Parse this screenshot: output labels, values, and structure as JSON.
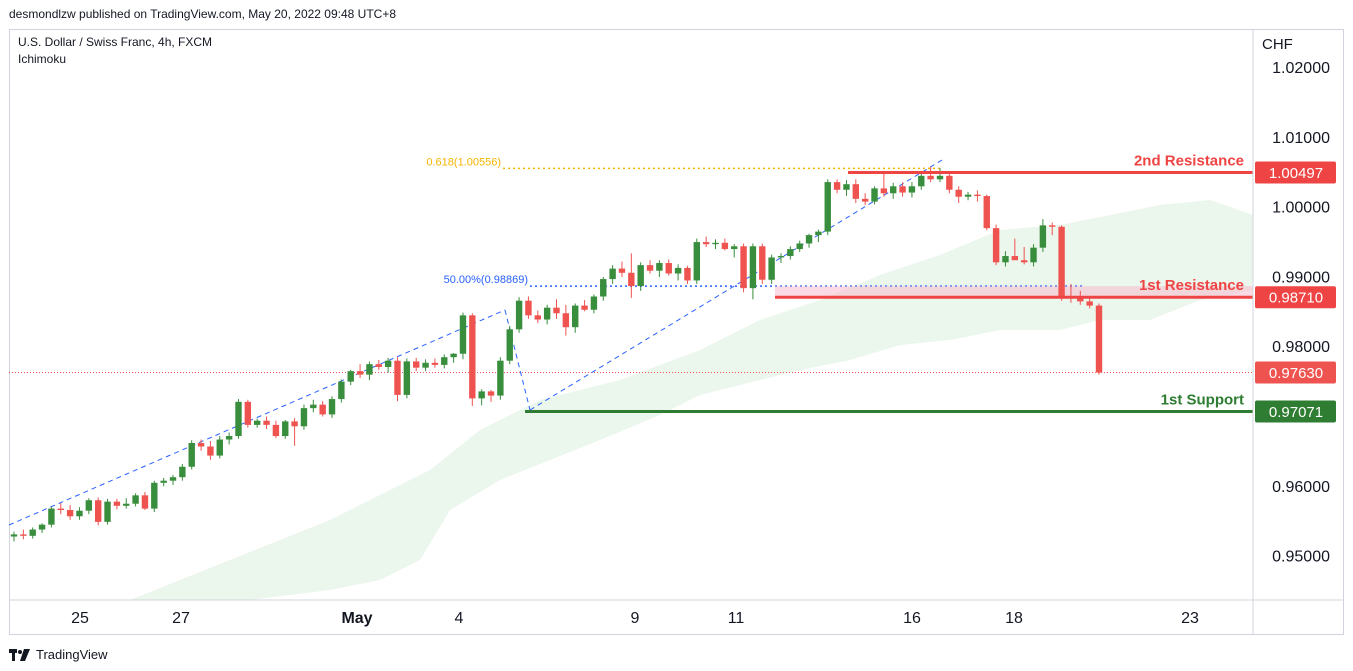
{
  "header": {
    "published_by": "desmondlzw published on TradingView.com, May 20, 2022 09:48 UTC+8"
  },
  "legend": {
    "symbol": "U.S. Dollar / Swiss Franc, 4h, FXCM",
    "indicator": "Ichimoku"
  },
  "footer": {
    "brand": "TradingView",
    "logo_icon": "tradingview-logo-icon"
  },
  "colors": {
    "up": "#388e3c",
    "down": "#ef5350",
    "resistance": "#ef4444",
    "support": "#2e7d32",
    "fib618": "#f5b400",
    "fib50": "#2962ff",
    "cloud": "#e8f5e9",
    "current": "#ef5350"
  },
  "chart_data": {
    "type": "candlestick",
    "currency_label": "CHF",
    "ylim": [
      0.9437,
      1.0254
    ],
    "y_ticks": [
      "1.02000",
      "1.01000",
      "1.00000",
      "0.99000",
      "0.98000",
      "0.96000",
      "0.95000"
    ],
    "y_tick_values": [
      1.02,
      1.01,
      1.0,
      0.99,
      0.98,
      0.96,
      0.95
    ],
    "x_ticks": [
      {
        "label": "25",
        "bold": false
      },
      {
        "label": "27",
        "bold": false
      },
      {
        "label": "May",
        "bold": true
      },
      {
        "label": "4",
        "bold": false
      },
      {
        "label": "9",
        "bold": false
      },
      {
        "label": "11",
        "bold": false
      },
      {
        "label": "16",
        "bold": false
      },
      {
        "label": "18",
        "bold": false
      },
      {
        "label": "23",
        "bold": false
      }
    ],
    "levels": {
      "resistance2": {
        "label": "2nd Resistance",
        "value": 1.00497,
        "price_label": "1.00497"
      },
      "resistance1": {
        "label": "1st Resistance",
        "value": 0.9871,
        "price_label": "0.98710"
      },
      "support1": {
        "label": "1st Support",
        "value": 0.97071,
        "price_label": "0.97071"
      },
      "current": {
        "value": 0.9763,
        "price_label": "0.97630"
      }
    },
    "fib": [
      {
        "label": "0.618(1.00556)",
        "value": 1.00556
      },
      {
        "label": "50.00%(0.98869)",
        "value": 0.98869
      }
    ],
    "candles": [
      {
        "o": 0.9528,
        "h": 0.9535,
        "l": 0.9521,
        "c": 0.9531
      },
      {
        "o": 0.9531,
        "h": 0.9538,
        "l": 0.9524,
        "c": 0.9529
      },
      {
        "o": 0.9529,
        "h": 0.9541,
        "l": 0.9525,
        "c": 0.9538
      },
      {
        "o": 0.9538,
        "h": 0.9547,
        "l": 0.9533,
        "c": 0.9545
      },
      {
        "o": 0.9545,
        "h": 0.9571,
        "l": 0.9541,
        "c": 0.9568
      },
      {
        "o": 0.9568,
        "h": 0.9576,
        "l": 0.956,
        "c": 0.9566
      },
      {
        "o": 0.9566,
        "h": 0.9573,
        "l": 0.9552,
        "c": 0.9557
      },
      {
        "o": 0.9557,
        "h": 0.957,
        "l": 0.9552,
        "c": 0.9565
      },
      {
        "o": 0.9565,
        "h": 0.9583,
        "l": 0.956,
        "c": 0.958
      },
      {
        "o": 0.958,
        "h": 0.9584,
        "l": 0.9544,
        "c": 0.9549
      },
      {
        "o": 0.9549,
        "h": 0.9582,
        "l": 0.9545,
        "c": 0.9578
      },
      {
        "o": 0.9578,
        "h": 0.9582,
        "l": 0.9567,
        "c": 0.9572
      },
      {
        "o": 0.9572,
        "h": 0.9583,
        "l": 0.9568,
        "c": 0.9575
      },
      {
        "o": 0.9575,
        "h": 0.959,
        "l": 0.9571,
        "c": 0.9587
      },
      {
        "o": 0.9587,
        "h": 0.9592,
        "l": 0.9566,
        "c": 0.9568
      },
      {
        "o": 0.9568,
        "h": 0.9608,
        "l": 0.9563,
        "c": 0.9605
      },
      {
        "o": 0.9605,
        "h": 0.9612,
        "l": 0.96,
        "c": 0.9608
      },
      {
        "o": 0.9608,
        "h": 0.9616,
        "l": 0.9602,
        "c": 0.9613
      },
      {
        "o": 0.9613,
        "h": 0.9632,
        "l": 0.9608,
        "c": 0.9628
      },
      {
        "o": 0.9628,
        "h": 0.9666,
        "l": 0.9624,
        "c": 0.9662
      },
      {
        "o": 0.9662,
        "h": 0.9667,
        "l": 0.9651,
        "c": 0.9657
      },
      {
        "o": 0.9657,
        "h": 0.9665,
        "l": 0.9638,
        "c": 0.9644
      },
      {
        "o": 0.9644,
        "h": 0.9672,
        "l": 0.964,
        "c": 0.9667
      },
      {
        "o": 0.9667,
        "h": 0.9677,
        "l": 0.966,
        "c": 0.9672
      },
      {
        "o": 0.9672,
        "h": 0.9725,
        "l": 0.9668,
        "c": 0.9721
      },
      {
        "o": 0.9721,
        "h": 0.9724,
        "l": 0.9684,
        "c": 0.9688
      },
      {
        "o": 0.9688,
        "h": 0.9697,
        "l": 0.9684,
        "c": 0.9694
      },
      {
        "o": 0.9694,
        "h": 0.97,
        "l": 0.9682,
        "c": 0.9688
      },
      {
        "o": 0.9688,
        "h": 0.9694,
        "l": 0.9669,
        "c": 0.9672
      },
      {
        "o": 0.9672,
        "h": 0.9695,
        "l": 0.9668,
        "c": 0.9693
      },
      {
        "o": 0.9693,
        "h": 0.9698,
        "l": 0.9658,
        "c": 0.9686
      },
      {
        "o": 0.9686,
        "h": 0.9717,
        "l": 0.9681,
        "c": 0.9712
      },
      {
        "o": 0.9712,
        "h": 0.9724,
        "l": 0.9706,
        "c": 0.9717
      },
      {
        "o": 0.9717,
        "h": 0.9722,
        "l": 0.97,
        "c": 0.9703
      },
      {
        "o": 0.9703,
        "h": 0.9729,
        "l": 0.9698,
        "c": 0.9725
      },
      {
        "o": 0.9725,
        "h": 0.9753,
        "l": 0.972,
        "c": 0.975
      },
      {
        "o": 0.975,
        "h": 0.9767,
        "l": 0.9745,
        "c": 0.9765
      },
      {
        "o": 0.9765,
        "h": 0.9775,
        "l": 0.9755,
        "c": 0.976
      },
      {
        "o": 0.976,
        "h": 0.9779,
        "l": 0.9752,
        "c": 0.9775
      },
      {
        "o": 0.9775,
        "h": 0.9781,
        "l": 0.9767,
        "c": 0.9771
      },
      {
        "o": 0.9771,
        "h": 0.9784,
        "l": 0.9763,
        "c": 0.978
      },
      {
        "o": 0.978,
        "h": 0.9785,
        "l": 0.9722,
        "c": 0.9731
      },
      {
        "o": 0.9731,
        "h": 0.9783,
        "l": 0.9726,
        "c": 0.9779
      },
      {
        "o": 0.9779,
        "h": 0.9784,
        "l": 0.9765,
        "c": 0.977
      },
      {
        "o": 0.977,
        "h": 0.9782,
        "l": 0.9765,
        "c": 0.9777
      },
      {
        "o": 0.9777,
        "h": 0.9783,
        "l": 0.977,
        "c": 0.9774
      },
      {
        "o": 0.9774,
        "h": 0.9789,
        "l": 0.9769,
        "c": 0.9785
      },
      {
        "o": 0.9785,
        "h": 0.9791,
        "l": 0.9777,
        "c": 0.979
      },
      {
        "o": 0.979,
        "h": 0.9849,
        "l": 0.9782,
        "c": 0.9845
      },
      {
        "o": 0.9845,
        "h": 0.9848,
        "l": 0.9715,
        "c": 0.9726
      },
      {
        "o": 0.9726,
        "h": 0.9739,
        "l": 0.9716,
        "c": 0.9736
      },
      {
        "o": 0.9736,
        "h": 0.9738,
        "l": 0.9721,
        "c": 0.973
      },
      {
        "o": 0.973,
        "h": 0.9785,
        "l": 0.9724,
        "c": 0.978
      },
      {
        "o": 0.978,
        "h": 0.983,
        "l": 0.9775,
        "c": 0.9825
      },
      {
        "o": 0.9825,
        "h": 0.9871,
        "l": 0.982,
        "c": 0.9866
      },
      {
        "o": 0.9866,
        "h": 0.9872,
        "l": 0.984,
        "c": 0.9845
      },
      {
        "o": 0.9845,
        "h": 0.9852,
        "l": 0.9834,
        "c": 0.9839
      },
      {
        "o": 0.9839,
        "h": 0.986,
        "l": 0.9832,
        "c": 0.9856
      },
      {
        "o": 0.9856,
        "h": 0.9868,
        "l": 0.984,
        "c": 0.9848
      },
      {
        "o": 0.9848,
        "h": 0.986,
        "l": 0.9816,
        "c": 0.9828
      },
      {
        "o": 0.9828,
        "h": 0.9862,
        "l": 0.982,
        "c": 0.9859
      },
      {
        "o": 0.9859,
        "h": 0.9867,
        "l": 0.9851,
        "c": 0.9853
      },
      {
        "o": 0.9853,
        "h": 0.9875,
        "l": 0.9848,
        "c": 0.9872
      },
      {
        "o": 0.9872,
        "h": 0.99,
        "l": 0.9866,
        "c": 0.9897
      },
      {
        "o": 0.9897,
        "h": 0.9917,
        "l": 0.989,
        "c": 0.9912
      },
      {
        "o": 0.9912,
        "h": 0.9922,
        "l": 0.99,
        "c": 0.9906
      },
      {
        "o": 0.9906,
        "h": 0.9934,
        "l": 0.987,
        "c": 0.9887
      },
      {
        "o": 0.9887,
        "h": 0.9921,
        "l": 0.988,
        "c": 0.9917
      },
      {
        "o": 0.9917,
        "h": 0.9924,
        "l": 0.9905,
        "c": 0.9909
      },
      {
        "o": 0.9909,
        "h": 0.9924,
        "l": 0.99,
        "c": 0.992
      },
      {
        "o": 0.992,
        "h": 0.9925,
        "l": 0.9902,
        "c": 0.9905
      },
      {
        "o": 0.9905,
        "h": 0.9918,
        "l": 0.9895,
        "c": 0.9913
      },
      {
        "o": 0.9913,
        "h": 0.9916,
        "l": 0.989,
        "c": 0.9895
      },
      {
        "o": 0.9895,
        "h": 0.9955,
        "l": 0.989,
        "c": 0.995
      },
      {
        "o": 0.995,
        "h": 0.9958,
        "l": 0.9943,
        "c": 0.9947
      },
      {
        "o": 0.9947,
        "h": 0.9954,
        "l": 0.994,
        "c": 0.9949
      },
      {
        "o": 0.9949,
        "h": 0.9955,
        "l": 0.9938,
        "c": 0.994
      },
      {
        "o": 0.994,
        "h": 0.9947,
        "l": 0.9928,
        "c": 0.9944
      },
      {
        "o": 0.9944,
        "h": 0.9948,
        "l": 0.9878,
        "c": 0.9884
      },
      {
        "o": 0.9884,
        "h": 0.9948,
        "l": 0.9868,
        "c": 0.9944
      },
      {
        "o": 0.9944,
        "h": 0.9948,
        "l": 0.989,
        "c": 0.9896
      },
      {
        "o": 0.9896,
        "h": 0.9932,
        "l": 0.989,
        "c": 0.9928
      },
      {
        "o": 0.9928,
        "h": 0.9934,
        "l": 0.992,
        "c": 0.993
      },
      {
        "o": 0.993,
        "h": 0.9944,
        "l": 0.9925,
        "c": 0.994
      },
      {
        "o": 0.994,
        "h": 0.9952,
        "l": 0.9936,
        "c": 0.9948
      },
      {
        "o": 0.9948,
        "h": 0.9962,
        "l": 0.9942,
        "c": 0.996
      },
      {
        "o": 0.996,
        "h": 0.9968,
        "l": 0.995,
        "c": 0.9965
      },
      {
        "o": 0.9965,
        "h": 1.004,
        "l": 0.996,
        "c": 1.0036
      },
      {
        "o": 1.0036,
        "h": 1.004,
        "l": 1.002,
        "c": 1.0025
      },
      {
        "o": 1.0025,
        "h": 1.0039,
        "l": 1.0016,
        "c": 1.0033
      },
      {
        "o": 1.0033,
        "h": 1.004,
        "l": 1.0006,
        "c": 1.0012
      },
      {
        "o": 1.0012,
        "h": 1.002,
        "l": 1.0003,
        "c": 1.0008
      },
      {
        "o": 1.0008,
        "h": 1.003,
        "l": 1.0004,
        "c": 1.0027
      },
      {
        "o": 1.0027,
        "h": 1.005,
        "l": 1.0015,
        "c": 1.002
      },
      {
        "o": 1.002,
        "h": 1.0035,
        "l": 1.0012,
        "c": 1.003
      },
      {
        "o": 1.003,
        "h": 1.0036,
        "l": 1.0015,
        "c": 1.0021
      },
      {
        "o": 1.0021,
        "h": 1.0036,
        "l": 1.0014,
        "c": 1.003
      },
      {
        "o": 1.003,
        "h": 1.0051,
        "l": 1.0025,
        "c": 1.0045
      },
      {
        "o": 1.0045,
        "h": 1.0058,
        "l": 1.0036,
        "c": 1.004
      },
      {
        "o": 1.004,
        "h": 1.0056,
        "l": 1.0036,
        "c": 1.0045
      },
      {
        "o": 1.0045,
        "h": 1.005,
        "l": 1.002,
        "c": 1.0025
      },
      {
        "o": 1.0025,
        "h": 1.003,
        "l": 1.0006,
        "c": 1.0015
      },
      {
        "o": 1.0015,
        "h": 1.0022,
        "l": 1.001,
        "c": 1.0018
      },
      {
        "o": 1.0018,
        "h": 1.0024,
        "l": 1.0008,
        "c": 1.0016
      },
      {
        "o": 1.0016,
        "h": 1.0018,
        "l": 0.9967,
        "c": 0.997
      },
      {
        "o": 0.997,
        "h": 0.9975,
        "l": 0.9917,
        "c": 0.9921
      },
      {
        "o": 0.9921,
        "h": 0.9937,
        "l": 0.9915,
        "c": 0.993
      },
      {
        "o": 0.993,
        "h": 0.9955,
        "l": 0.9925,
        "c": 0.9924
      },
      {
        "o": 0.9924,
        "h": 0.9943,
        "l": 0.9918,
        "c": 0.9921
      },
      {
        "o": 0.9921,
        "h": 0.9947,
        "l": 0.9915,
        "c": 0.9942
      },
      {
        "o": 0.9942,
        "h": 0.9983,
        "l": 0.9936,
        "c": 0.9974
      },
      {
        "o": 0.9974,
        "h": 0.9978,
        "l": 0.996,
        "c": 0.9972
      },
      {
        "o": 0.9972,
        "h": 0.9974,
        "l": 0.9866,
        "c": 0.9872
      },
      {
        "o": 0.9872,
        "h": 0.989,
        "l": 0.9863,
        "c": 0.987
      },
      {
        "o": 0.987,
        "h": 0.988,
        "l": 0.986,
        "c": 0.9865
      },
      {
        "o": 0.9865,
        "h": 0.987,
        "l": 0.9855,
        "c": 0.9859
      },
      {
        "o": 0.9859,
        "h": 0.9862,
        "l": 0.976,
        "c": 0.9763
      }
    ]
  }
}
